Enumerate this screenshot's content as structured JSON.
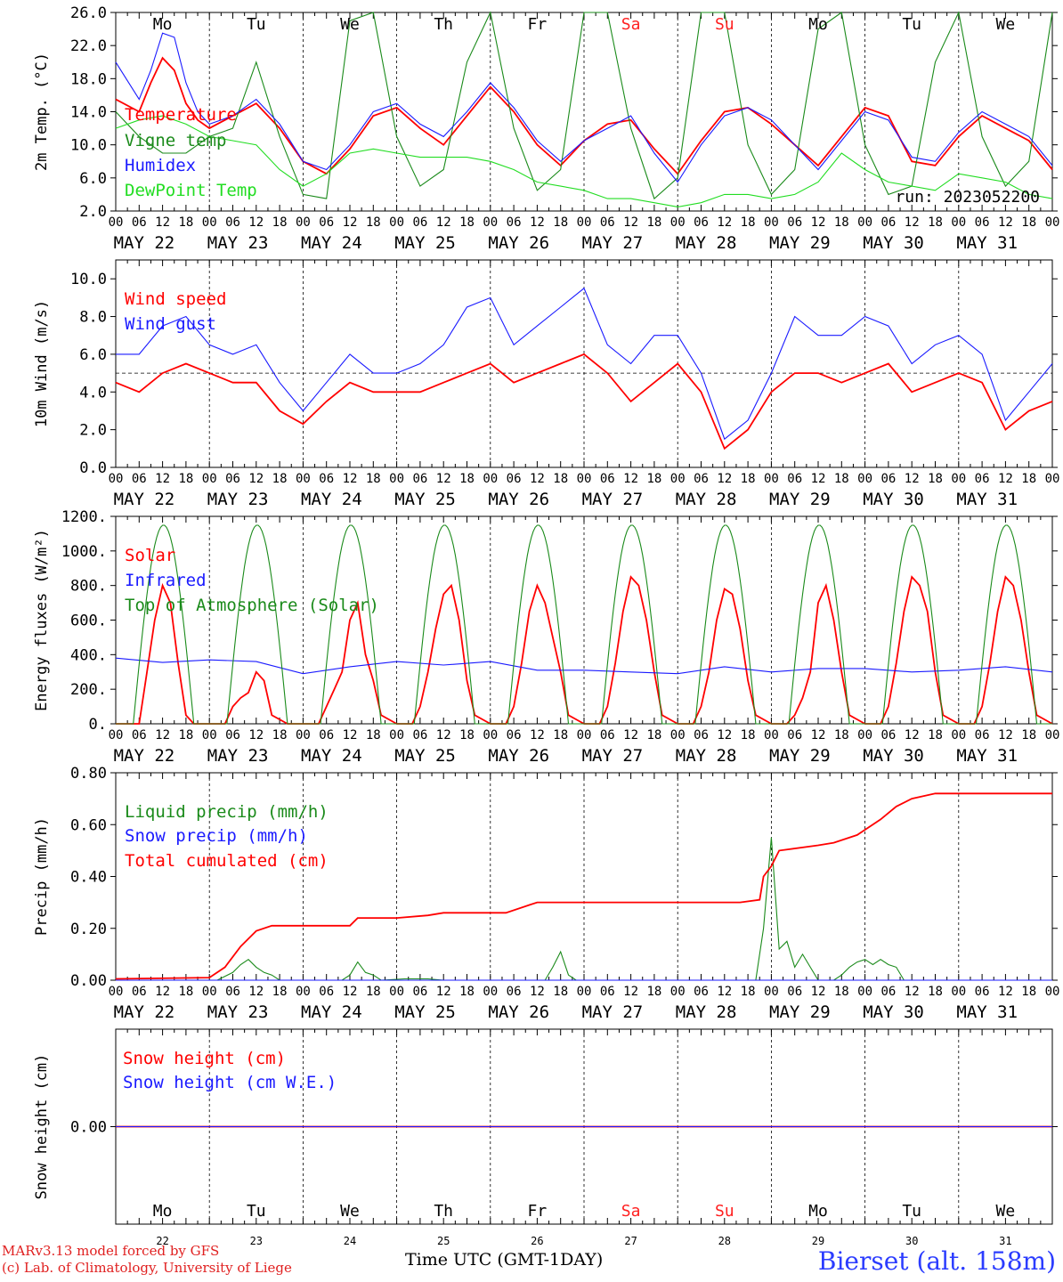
{
  "footer": {
    "model_line": "MARv3.13 model forced by GFS",
    "credit_line": "(c) Lab. of Climatology, University of Liege",
    "station": "Bierset (alt. 158m)",
    "x_title": "Time UTC (GMT-1DAY)"
  },
  "days": {
    "weekdays": [
      "Mo",
      "Tu",
      "We",
      "Th",
      "Fr",
      "Sa",
      "Su",
      "Mo",
      "Tu",
      "We"
    ],
    "weekend": [
      false,
      false,
      false,
      false,
      false,
      true,
      true,
      false,
      false,
      false
    ],
    "dates": [
      "MAY 22",
      "MAY 23",
      "MAY 24",
      "MAY 25",
      "MAY 26",
      "MAY 27",
      "MAY 28",
      "MAY 29",
      "MAY 30",
      "MAY 31"
    ],
    "day_numbers": [
      "22",
      "23",
      "24",
      "25",
      "26",
      "27",
      "28",
      "29",
      "30",
      "31"
    ],
    "hour_ticks": [
      "00",
      "06",
      "12",
      "18"
    ],
    "end_tick": "00"
  },
  "colors": {
    "red": "#ff0000",
    "green": "#1a8a1a",
    "blue": "#1a1aff",
    "lightgreen": "#22dd22",
    "weekend": "#ff2020"
  },
  "chart_data": [
    {
      "type": "line",
      "ylabel": "2m Temp. (°C)",
      "ylim": [
        2.0,
        26.0
      ],
      "yticks": [
        "2.0",
        "6.0",
        "10.0",
        "14.0",
        "18.0",
        "22.0",
        "26.0"
      ],
      "annotation": "run: 2023052200",
      "x_unit": "hours since 2023-05-22 00 UTC",
      "series": [
        {
          "name": "Temperature",
          "color": "red",
          "x": [
            0,
            6,
            9,
            12,
            15,
            18,
            21,
            24,
            30,
            36,
            42,
            48,
            54,
            60,
            66,
            72,
            78,
            84,
            90,
            96,
            102,
            108,
            114,
            120,
            126,
            132,
            138,
            144,
            150,
            156,
            162,
            168,
            174,
            180,
            186,
            192,
            198,
            204,
            210,
            216,
            222,
            228,
            234,
            240
          ],
          "values": [
            15.5,
            14.0,
            17.5,
            20.5,
            19.0,
            15.0,
            13.0,
            12.0,
            13.5,
            15.0,
            12.0,
            8.0,
            6.5,
            9.5,
            13.5,
            14.5,
            12.0,
            10.0,
            13.5,
            17.0,
            14.0,
            10.0,
            7.5,
            10.5,
            12.5,
            13.0,
            9.5,
            6.5,
            10.5,
            14.0,
            14.5,
            12.5,
            10.0,
            7.5,
            11.0,
            14.5,
            13.5,
            8.0,
            7.5,
            11.0,
            13.5,
            12.0,
            10.5,
            7.0
          ]
        },
        {
          "name": "Vigne temp",
          "color": "green",
          "x": [
            0,
            6,
            12,
            18,
            24,
            30,
            36,
            42,
            48,
            54,
            60,
            66,
            72,
            78,
            84,
            90,
            96,
            102,
            108,
            114,
            120,
            126,
            132,
            138,
            144,
            150,
            156,
            162,
            168,
            174,
            180,
            186,
            192,
            198,
            204,
            210,
            216,
            222,
            228,
            234,
            240
          ],
          "values": [
            14.0,
            11.0,
            9.0,
            9.0,
            11.0,
            12.0,
            20.0,
            11.0,
            4.0,
            3.5,
            25.0,
            26.0,
            11.0,
            5.0,
            7.0,
            20.0,
            26.0,
            12.0,
            4.5,
            7.0,
            26.0,
            26.0,
            12.0,
            3.5,
            6.0,
            26.0,
            26.0,
            10.0,
            4.0,
            7.0,
            24.0,
            26.0,
            10.0,
            4.0,
            5.0,
            20.0,
            26.0,
            11.0,
            5.0,
            8.0,
            26.0
          ]
        },
        {
          "name": "Humidex",
          "color": "blue",
          "x": [
            0,
            6,
            9,
            12,
            15,
            18,
            21,
            24,
            30,
            36,
            42,
            48,
            54,
            60,
            66,
            72,
            78,
            84,
            90,
            96,
            102,
            108,
            114,
            120,
            126,
            132,
            138,
            144,
            150,
            156,
            162,
            168,
            174,
            180,
            186,
            192,
            198,
            204,
            210,
            216,
            222,
            228,
            234,
            240
          ],
          "values": [
            20.0,
            15.5,
            19.0,
            23.5,
            23.0,
            17.5,
            14.0,
            12.5,
            13.5,
            15.5,
            12.5,
            8.0,
            7.0,
            10.0,
            14.0,
            15.0,
            12.5,
            11.0,
            14.0,
            17.5,
            14.5,
            10.5,
            8.0,
            10.5,
            12.0,
            13.5,
            9.0,
            5.5,
            10.0,
            13.5,
            14.5,
            13.0,
            10.0,
            7.0,
            10.5,
            14.0,
            13.0,
            8.5,
            8.0,
            11.5,
            14.0,
            12.5,
            11.0,
            7.5
          ]
        },
        {
          "name": "DewPoint Temp",
          "color": "lightgreen",
          "x": [
            0,
            6,
            12,
            18,
            24,
            30,
            36,
            42,
            48,
            54,
            60,
            66,
            72,
            78,
            84,
            90,
            96,
            102,
            108,
            114,
            120,
            126,
            132,
            138,
            144,
            150,
            156,
            162,
            168,
            174,
            180,
            186,
            192,
            198,
            204,
            210,
            216,
            222,
            228,
            234,
            240
          ],
          "values": [
            12.0,
            13.0,
            13.5,
            12.5,
            11.0,
            10.5,
            10.0,
            7.0,
            5.0,
            6.5,
            9.0,
            9.5,
            9.0,
            8.5,
            8.5,
            8.5,
            8.0,
            7.0,
            5.5,
            5.0,
            4.5,
            3.5,
            3.5,
            3.0,
            2.5,
            3.0,
            4.0,
            4.0,
            3.5,
            4.0,
            5.5,
            9.0,
            7.0,
            5.5,
            5.0,
            4.5,
            6.5,
            6.0,
            5.5,
            4.0,
            3.5
          ]
        }
      ]
    },
    {
      "type": "line",
      "ylabel": "10m Wind (m/s)",
      "ylim": [
        0.0,
        11.0
      ],
      "yticks": [
        "0.0",
        "2.0",
        "4.0",
        "6.0",
        "8.0",
        "10.0"
      ],
      "reference_line": 5.0,
      "series": [
        {
          "name": "Wind speed",
          "color": "red",
          "x": [
            0,
            6,
            12,
            18,
            24,
            30,
            36,
            42,
            48,
            54,
            60,
            66,
            72,
            78,
            84,
            90,
            96,
            102,
            108,
            114,
            120,
            126,
            132,
            138,
            144,
            150,
            156,
            162,
            168,
            174,
            180,
            186,
            192,
            198,
            204,
            210,
            216,
            222,
            228,
            234,
            240
          ],
          "values": [
            4.5,
            4.0,
            5.0,
            5.5,
            5.0,
            4.5,
            4.5,
            3.0,
            2.3,
            3.5,
            4.5,
            4.0,
            4.0,
            4.0,
            4.5,
            5.0,
            5.5,
            4.5,
            5.0,
            5.5,
            6.0,
            5.0,
            3.5,
            4.5,
            5.5,
            4.0,
            1.0,
            2.0,
            4.0,
            5.0,
            5.0,
            4.5,
            5.0,
            5.5,
            4.0,
            4.5,
            5.0,
            4.5,
            2.0,
            3.0,
            3.5
          ]
        },
        {
          "name": "Wind gust",
          "color": "blue",
          "x": [
            0,
            6,
            12,
            18,
            24,
            30,
            36,
            42,
            48,
            54,
            60,
            66,
            72,
            78,
            84,
            90,
            96,
            102,
            108,
            114,
            120,
            126,
            132,
            138,
            144,
            150,
            156,
            162,
            168,
            174,
            180,
            186,
            192,
            198,
            204,
            210,
            216,
            222,
            228,
            234,
            240
          ],
          "values": [
            6.0,
            6.0,
            7.5,
            8.0,
            6.5,
            6.0,
            6.5,
            4.5,
            3.0,
            4.5,
            6.0,
            5.0,
            5.0,
            5.5,
            6.5,
            8.5,
            9.0,
            6.5,
            7.5,
            8.5,
            9.5,
            6.5,
            5.5,
            7.0,
            7.0,
            5.0,
            1.5,
            2.5,
            5.0,
            8.0,
            7.0,
            7.0,
            8.0,
            7.5,
            5.5,
            6.5,
            7.0,
            6.0,
            2.5,
            4.0,
            5.5
          ]
        }
      ]
    },
    {
      "type": "line",
      "ylabel": "Energy fluxes (W/m²)",
      "ylim": [
        0,
        1200
      ],
      "yticks": [
        "0.",
        "200.",
        "400.",
        "600.",
        "800.",
        "1000.",
        "1200."
      ],
      "series": [
        {
          "name": "Solar",
          "color": "red",
          "x": [
            0,
            6,
            8,
            10,
            12,
            14,
            16,
            18,
            20,
            24,
            28,
            30,
            32,
            34,
            36,
            38,
            40,
            44,
            48,
            52,
            54,
            56,
            58,
            60,
            62,
            64,
            66,
            68,
            72,
            76,
            78,
            80,
            82,
            84,
            86,
            88,
            90,
            92,
            96,
            100,
            102,
            104,
            106,
            108,
            110,
            112,
            114,
            116,
            120,
            124,
            126,
            128,
            130,
            132,
            134,
            136,
            138,
            140,
            144,
            148,
            150,
            152,
            154,
            156,
            158,
            160,
            162,
            164,
            168,
            172,
            174,
            176,
            178,
            180,
            182,
            184,
            186,
            188,
            192,
            196,
            198,
            200,
            202,
            204,
            206,
            208,
            210,
            212,
            216,
            220,
            222,
            224,
            226,
            228,
            230,
            232,
            234,
            236,
            240
          ],
          "values": [
            0,
            0,
            300,
            600,
            800,
            700,
            350,
            50,
            0,
            0,
            0,
            100,
            150,
            180,
            300,
            250,
            50,
            0,
            0,
            0,
            100,
            200,
            300,
            600,
            700,
            400,
            250,
            50,
            0,
            0,
            100,
            300,
            550,
            750,
            800,
            600,
            250,
            50,
            0,
            0,
            100,
            350,
            650,
            800,
            700,
            500,
            300,
            50,
            0,
            0,
            100,
            350,
            650,
            850,
            800,
            600,
            300,
            50,
            0,
            0,
            100,
            300,
            600,
            780,
            750,
            550,
            250,
            50,
            0,
            0,
            50,
            150,
            300,
            700,
            800,
            600,
            300,
            50,
            0,
            0,
            100,
            350,
            650,
            850,
            800,
            650,
            300,
            50,
            0,
            0,
            100,
            350,
            650,
            850,
            800,
            600,
            300,
            50,
            0
          ]
        },
        {
          "name": "Infrared",
          "color": "blue",
          "x": [
            0,
            12,
            24,
            36,
            48,
            60,
            72,
            84,
            96,
            108,
            120,
            132,
            144,
            156,
            168,
            180,
            192,
            204,
            216,
            228,
            240
          ],
          "values": [
            380,
            355,
            370,
            360,
            290,
            330,
            360,
            340,
            360,
            310,
            310,
            300,
            290,
            330,
            300,
            320,
            320,
            300,
            310,
            330,
            300
          ]
        },
        {
          "name": "Top of Atmosphere (Solar)",
          "color": "green",
          "peak": 1150,
          "sunrise_h": 4.5,
          "sunset_h": 20.0
        }
      ]
    },
    {
      "type": "line",
      "ylabel": "Precip (mm/h)",
      "ylim": [
        0.0,
        0.8
      ],
      "yticks": [
        "0.00",
        "0.20",
        "0.40",
        "0.60",
        "0.80"
      ],
      "series": [
        {
          "name": "Liquid precip (mm/h)",
          "color": "green",
          "x": [
            0,
            26,
            30,
            32,
            34,
            36,
            38,
            40,
            42,
            58,
            60,
            62,
            64,
            66,
            68,
            74,
            80,
            84,
            88,
            100,
            110,
            112,
            114,
            116,
            118,
            120,
            164,
            166,
            168,
            170,
            172,
            174,
            176,
            178,
            180,
            184,
            186,
            188,
            190,
            192,
            194,
            196,
            198,
            200,
            202,
            240
          ],
          "values": [
            0,
            0,
            0.03,
            0.06,
            0.08,
            0.05,
            0.03,
            0.02,
            0,
            0,
            0.02,
            0.07,
            0.03,
            0.02,
            0,
            0.005,
            0.005,
            0,
            0,
            0,
            0,
            0.05,
            0.11,
            0.02,
            0,
            0,
            0,
            0.2,
            0.55,
            0.12,
            0.15,
            0.05,
            0.1,
            0.05,
            0,
            0,
            0.02,
            0.05,
            0.07,
            0.08,
            0.06,
            0.08,
            0.06,
            0.05,
            0,
            0
          ]
        },
        {
          "name": "Snow precip (mm/h)",
          "color": "blue",
          "x": [
            0,
            240
          ],
          "values": [
            0,
            0
          ]
        },
        {
          "name": "Total cumulated (cm)",
          "color": "red",
          "x": [
            0,
            24,
            28,
            32,
            36,
            40,
            60,
            62,
            72,
            80,
            84,
            100,
            106,
            108,
            160,
            165,
            166,
            168,
            170,
            180,
            184,
            190,
            196,
            200,
            204,
            210,
            216,
            240
          ],
          "values": [
            0.005,
            0.01,
            0.05,
            0.13,
            0.19,
            0.21,
            0.21,
            0.24,
            0.24,
            0.25,
            0.26,
            0.26,
            0.29,
            0.3,
            0.3,
            0.31,
            0.4,
            0.44,
            0.5,
            0.52,
            0.53,
            0.56,
            0.62,
            0.67,
            0.7,
            0.72,
            0.72,
            0.72
          ]
        }
      ]
    },
    {
      "type": "line",
      "ylabel": "Snow height (cm)",
      "yticks": [
        "0.00"
      ],
      "series": [
        {
          "name": "Snow height (cm)",
          "color": "red",
          "x": [
            0,
            240
          ],
          "values": [
            0,
            0
          ]
        },
        {
          "name": "Snow height (cm W.E.)",
          "color": "blue",
          "x": [
            0,
            240
          ],
          "values": [
            0,
            0
          ]
        }
      ]
    }
  ]
}
